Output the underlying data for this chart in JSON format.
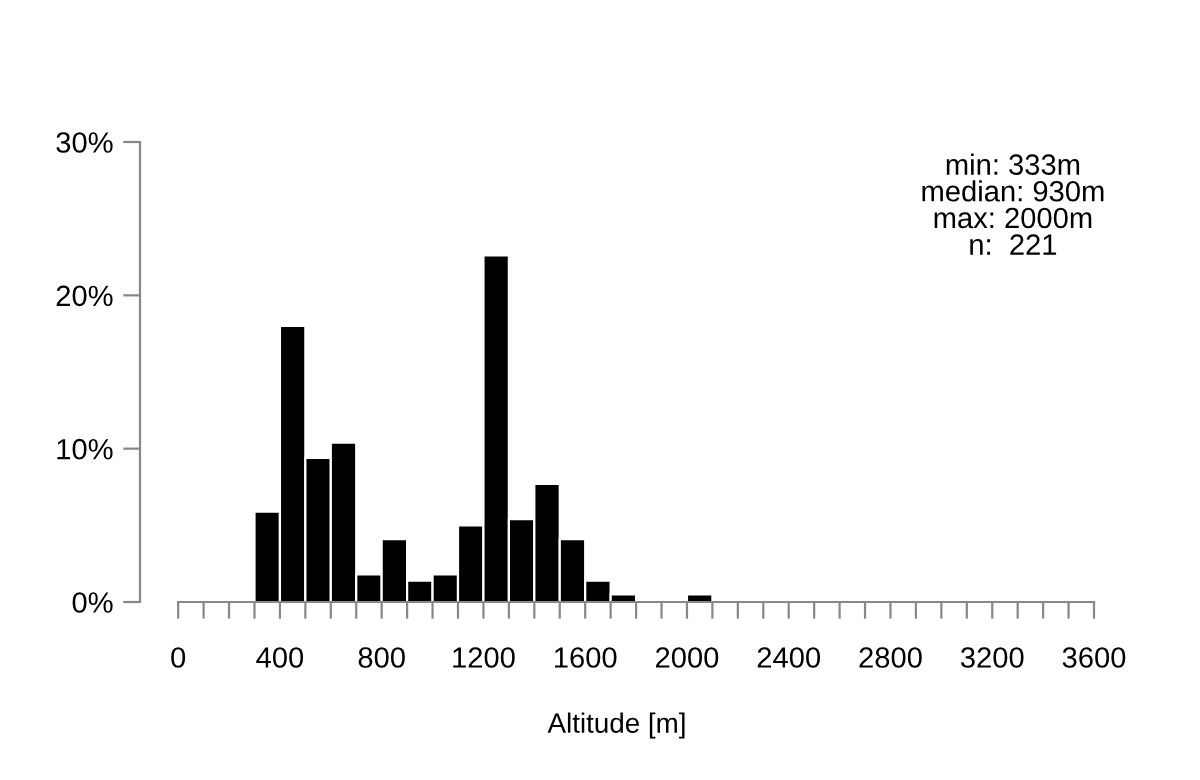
{
  "chart_data": {
    "type": "histogram",
    "xlabel": "Altitude [m]",
    "bins": [
      300,
      400,
      500,
      600,
      700,
      800,
      900,
      1000,
      1100,
      1200,
      1300,
      1400,
      1500,
      1600,
      1700,
      1800,
      1900,
      2000,
      2100
    ],
    "values": [
      5.9,
      18.0,
      9.4,
      10.4,
      1.8,
      4.1,
      1.4,
      1.8,
      5.0,
      22.6,
      5.4,
      7.7,
      4.1,
      1.4,
      0.5,
      0,
      0,
      0.5
    ],
    "color": "#000000",
    "xlim": [
      -150,
      3600
    ],
    "xticks": [
      0,
      {
        "value": 100,
        "label": null
      },
      {
        "value": 200,
        "label": null
      },
      {
        "value": 300,
        "label": null
      },
      400,
      {
        "value": 500,
        "label": null
      },
      {
        "value": 600,
        "label": null
      },
      {
        "value": 700,
        "label": null
      },
      800,
      {
        "value": 900,
        "label": null
      },
      {
        "value": 1000,
        "label": null
      },
      {
        "value": 1100,
        "label": null
      },
      1200,
      {
        "value": 1300,
        "label": null
      },
      {
        "value": 1400,
        "label": null
      },
      {
        "value": 1500,
        "label": null
      },
      1600,
      {
        "value": 1700,
        "label": null
      },
      {
        "value": 1800,
        "label": null
      },
      {
        "value": 1900,
        "label": null
      },
      2000,
      {
        "value": 2100,
        "label": null
      },
      {
        "value": 2200,
        "label": null
      },
      {
        "value": 2300,
        "label": null
      },
      2400,
      {
        "value": 2500,
        "label": null
      },
      {
        "value": 2600,
        "label": null
      },
      {
        "value": 2700,
        "label": null
      },
      2800,
      {
        "value": 2900,
        "label": null
      },
      {
        "value": 3000,
        "label": null
      },
      {
        "value": 3100,
        "label": null
      },
      3200,
      {
        "value": 3300,
        "label": null
      },
      {
        "value": 3400,
        "label": null
      },
      {
        "value": 3500,
        "label": null
      },
      3600
    ],
    "ylim": [
      0,
      30
    ],
    "yticks": [
      {
        "value": 0,
        "label": "0%"
      },
      {
        "value": 10,
        "label": "10%"
      },
      {
        "value": 20,
        "label": "20%"
      },
      {
        "value": 30,
        "label": "30%"
      }
    ],
    "grid": false,
    "legend": false,
    "annotations": [
      "min: 333m",
      "median: 930m",
      "max: 2000m",
      "n:  221"
    ]
  }
}
